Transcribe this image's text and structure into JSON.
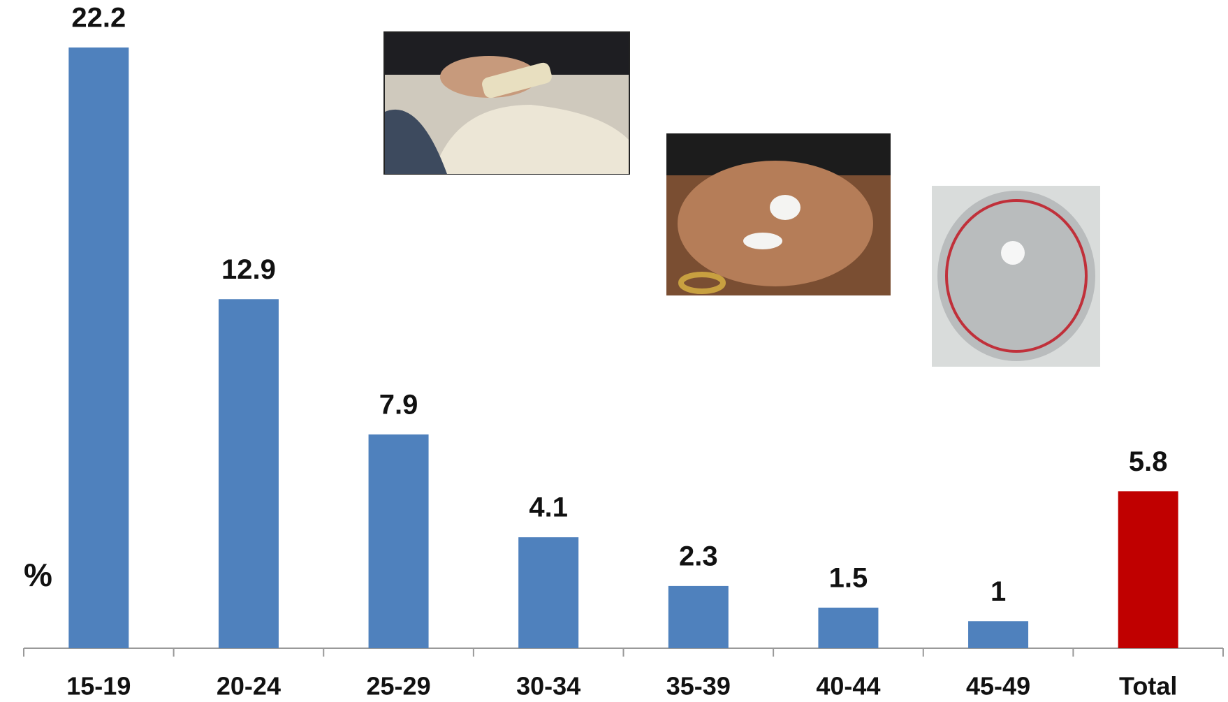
{
  "chart_data": {
    "type": "bar",
    "y_label": "%",
    "categories": [
      "15-19",
      "20-24",
      "25-29",
      "30-34",
      "35-39",
      "40-44",
      "45-49",
      "Total"
    ],
    "values": [
      22.2,
      12.9,
      7.9,
      4.1,
      2.3,
      1.5,
      1,
      5.8
    ],
    "colors": [
      "#4f81bd",
      "#4f81bd",
      "#4f81bd",
      "#4f81bd",
      "#4f81bd",
      "#4f81bd",
      "#4f81bd",
      "#c00000"
    ],
    "axis_color": "#999999"
  }
}
